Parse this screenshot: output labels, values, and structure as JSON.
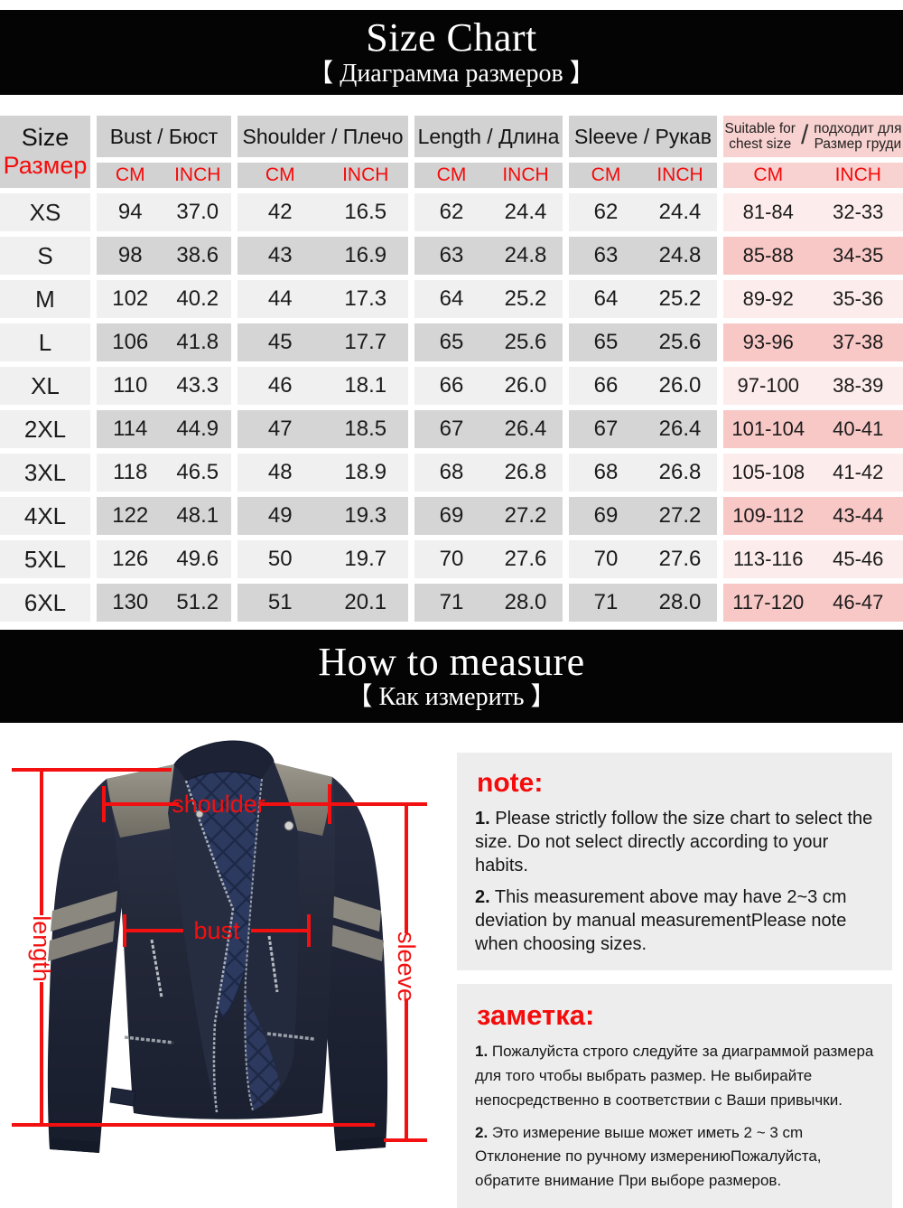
{
  "banner1": {
    "title": "Size Chart",
    "subtitle": "【 Диаграмма размеров 】"
  },
  "banner2": {
    "title": "How to measure",
    "subtitle": "【 Как измерить 】"
  },
  "table": {
    "size_header": {
      "en": "Size",
      "ru": "Размер"
    },
    "unit_cm": "CM",
    "unit_inch": "INCH",
    "columns": [
      {
        "label": "Bust / Бюст"
      },
      {
        "label": "Shoulder / Плечо"
      },
      {
        "label": "Length / Длина"
      },
      {
        "label": "Sleeve / Рукав"
      }
    ],
    "suitable_header": {
      "en_line1": "Suitable for",
      "en_line2": "chest size",
      "slash": "/",
      "ru_line1": "подходит для",
      "ru_line2": "Размер груди"
    },
    "rows": [
      {
        "size": "XS",
        "values": [
          "94",
          "37.0",
          "42",
          "16.5",
          "62",
          "24.4",
          "62",
          "24.4"
        ],
        "suitable": [
          "81-84",
          "32-33"
        ]
      },
      {
        "size": "S",
        "values": [
          "98",
          "38.6",
          "43",
          "16.9",
          "63",
          "24.8",
          "63",
          "24.8"
        ],
        "suitable": [
          "85-88",
          "34-35"
        ]
      },
      {
        "size": "M",
        "values": [
          "102",
          "40.2",
          "44",
          "17.3",
          "64",
          "25.2",
          "64",
          "25.2"
        ],
        "suitable": [
          "89-92",
          "35-36"
        ]
      },
      {
        "size": "L",
        "values": [
          "106",
          "41.8",
          "45",
          "17.7",
          "65",
          "25.6",
          "65",
          "25.6"
        ],
        "suitable": [
          "93-96",
          "37-38"
        ]
      },
      {
        "size": "XL",
        "values": [
          "110",
          "43.3",
          "46",
          "18.1",
          "66",
          "26.0",
          "66",
          "26.0"
        ],
        "suitable": [
          "97-100",
          "38-39"
        ]
      },
      {
        "size": "2XL",
        "values": [
          "114",
          "44.9",
          "47",
          "18.5",
          "67",
          "26.4",
          "67",
          "26.4"
        ],
        "suitable": [
          "101-104",
          "40-41"
        ]
      },
      {
        "size": "3XL",
        "values": [
          "118",
          "46.5",
          "48",
          "18.9",
          "68",
          "26.8",
          "68",
          "26.8"
        ],
        "suitable": [
          "105-108",
          "41-42"
        ]
      },
      {
        "size": "4XL",
        "values": [
          "122",
          "48.1",
          "49",
          "19.3",
          "69",
          "27.2",
          "69",
          "27.2"
        ],
        "suitable": [
          "109-112",
          "43-44"
        ]
      },
      {
        "size": "5XL",
        "values": [
          "126",
          "49.6",
          "50",
          "19.7",
          "70",
          "27.6",
          "70",
          "27.6"
        ],
        "suitable": [
          "113-116",
          "45-46"
        ]
      },
      {
        "size": "6XL",
        "values": [
          "130",
          "51.2",
          "51",
          "20.1",
          "71",
          "28.0",
          "71",
          "28.0"
        ],
        "suitable": [
          "117-120",
          "46-47"
        ]
      }
    ]
  },
  "figure": {
    "labels": {
      "shoulder": "shoulder",
      "bust": "bust",
      "length": "length",
      "sleeve": "sleeve"
    },
    "accent": "#f21010"
  },
  "notes_en": {
    "title": "note:",
    "items": [
      {
        "num": "1.",
        "text": " Please strictly follow the size chart to select the size. Do not select directly according to your habits."
      },
      {
        "num": "2.",
        "text": " This measurement above may have 2~3 cm deviation by manual measurementPlease note when choosing sizes."
      }
    ]
  },
  "notes_ru": {
    "title": "заметка:",
    "items": [
      {
        "num": "1.",
        "text": " Пожалуйста строго следуйте за диаграммой размера для того чтобы выбрать размер. Не выбирайте непосредственно в соответствии с Ваши привычки."
      },
      {
        "num": "2.",
        "text": " Это измерение выше может иметь 2 ~ 3 cm Отклонение по ручному измерениюПожалуйста, обратите внимание При выборе размеров."
      }
    ]
  }
}
